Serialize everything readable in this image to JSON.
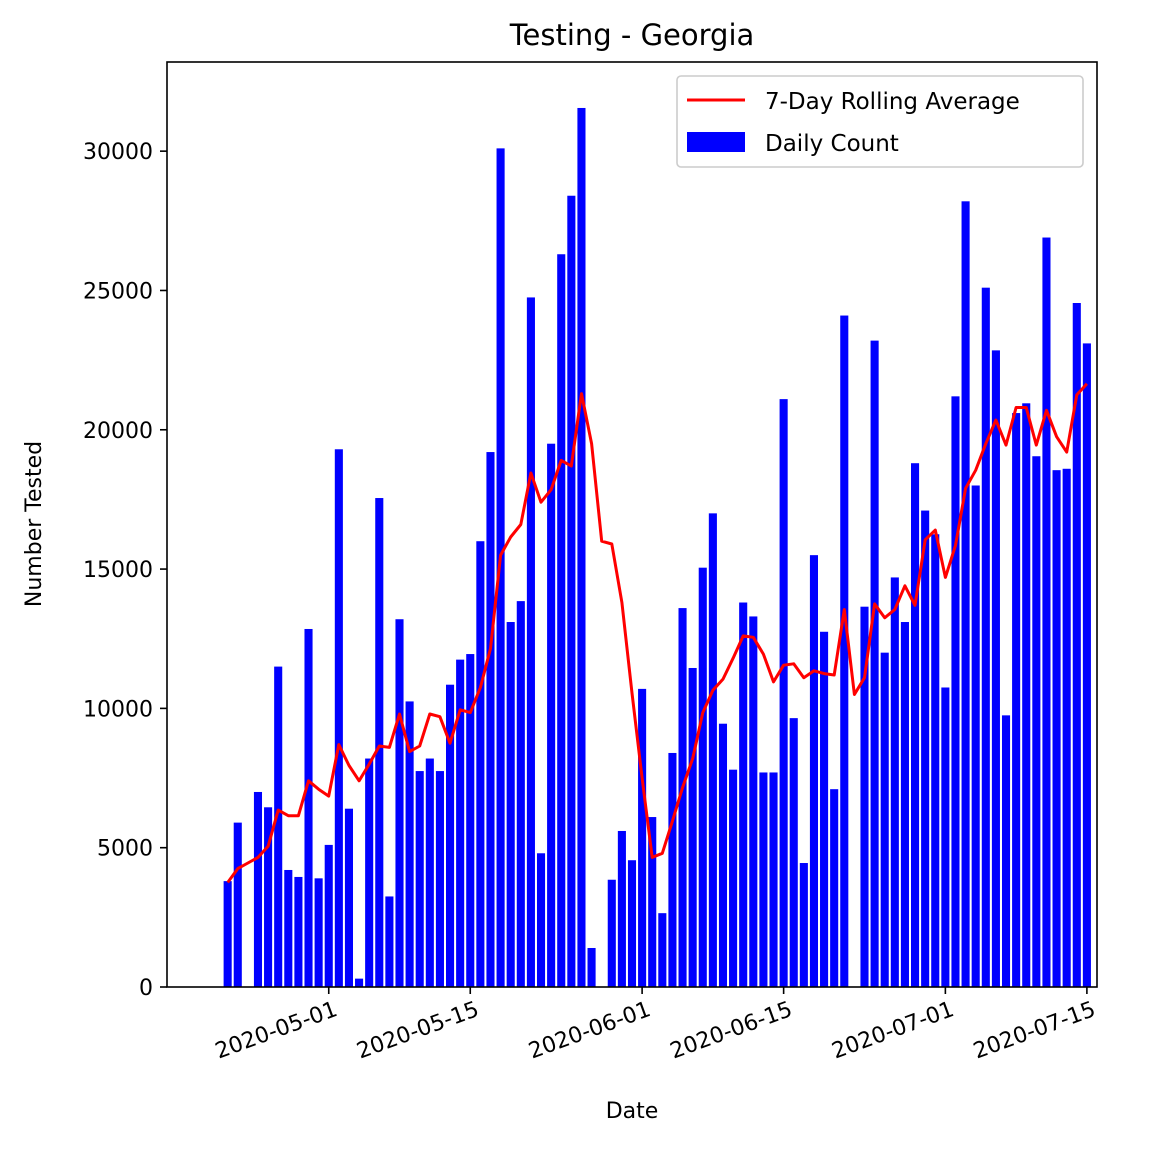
{
  "chart_data": {
    "type": "bar",
    "title": "Testing - Georgia",
    "xlabel": "Date",
    "ylabel": "Number Tested",
    "ylim": [
      0,
      33200
    ],
    "xlim": [
      "2020-04-15",
      "2020-07-16"
    ],
    "yticks": [
      0,
      5000,
      10000,
      15000,
      20000,
      25000,
      30000
    ],
    "xticks": [
      "2020-05-01",
      "2020-05-15",
      "2020-06-01",
      "2020-06-15",
      "2020-07-01",
      "2020-07-15"
    ],
    "grid": false,
    "legend_position": "top-right",
    "colors": {
      "bars": "#0000ff",
      "line": "#ff0000"
    },
    "series": [
      {
        "name": "Daily Count",
        "kind": "bar",
        "start_date": "2020-04-21",
        "values": [
          3800,
          5900,
          null,
          7000,
          6450,
          11500,
          4200,
          3950,
          12850,
          3900,
          5100,
          19300,
          6400,
          300,
          8200,
          17550,
          3250,
          13200,
          10250,
          7750,
          8200,
          7750,
          10850,
          11750,
          11950,
          16000,
          19200,
          30100,
          13100,
          13850,
          24750,
          4800,
          19500,
          26300,
          28400,
          31550,
          1400,
          null,
          3850,
          5600,
          4550,
          10700,
          6100,
          2650,
          8400,
          13600,
          11450,
          15050,
          17000,
          9450,
          7800,
          13800,
          13300,
          7700,
          7700,
          21100,
          9650,
          4450,
          15500,
          12750,
          7100,
          24100,
          null,
          13650,
          23200,
          12000,
          14700,
          13100,
          18800,
          17100,
          16250,
          10750,
          21200,
          28200,
          18000,
          25100,
          22850,
          9750,
          20600,
          20950,
          19050,
          26900,
          18550,
          18600,
          24550,
          23100
        ]
      },
      {
        "name": "7-Day Rolling Average",
        "kind": "line",
        "start_date": "2020-04-21",
        "values": [
          3750,
          4250,
          4450,
          4650,
          5050,
          6350,
          6150,
          6150,
          7400,
          7100,
          6850,
          8700,
          7950,
          7400,
          8000,
          8650,
          8600,
          9800,
          8450,
          8650,
          9800,
          9700,
          8750,
          9950,
          9850,
          10750,
          12150,
          15500,
          16150,
          16600,
          18450,
          17400,
          17850,
          18900,
          18700,
          21300,
          19500,
          16000,
          15900,
          13800,
          10550,
          7500,
          4650,
          4800,
          5950,
          7150,
          8200,
          9850,
          10650,
          11050,
          11800,
          12600,
          12550,
          11950,
          10950,
          11550,
          11600,
          11100,
          11350,
          11250,
          11200,
          13550,
          10500,
          11100,
          13750,
          13250,
          13550,
          14400,
          13700,
          16050,
          16400,
          14700,
          15850,
          17900,
          18550,
          19500,
          20350,
          19450,
          20800,
          20800,
          19450,
          20700,
          19750,
          19200,
          21250,
          21650
        ]
      }
    ]
  }
}
